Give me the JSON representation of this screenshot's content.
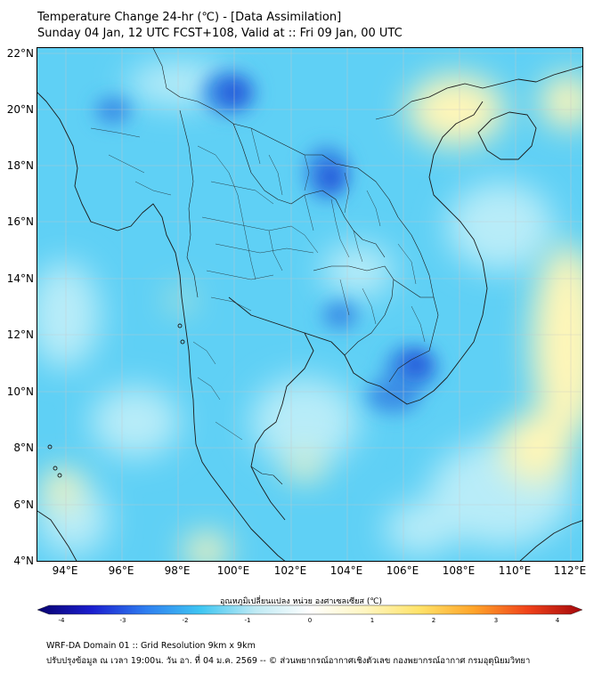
{
  "title_line1": "Temperature Change 24-hr (℃) - [Data Assimilation]",
  "title_line2": "Sunday 04 Jan, 12 UTC FCST+108, Valid at :: Fri 09 Jan, 00 UTC",
  "lat_labels": [
    "22°N",
    "20°N",
    "18°N",
    "16°N",
    "14°N",
    "12°N",
    "10°N",
    "8°N",
    "6°N",
    "4°N"
  ],
  "lon_labels": [
    "94°E",
    "96°E",
    "98°E",
    "100°E",
    "102°E",
    "104°E",
    "106°E",
    "108°E",
    "110°E",
    "112°E"
  ],
  "colorbar": {
    "label": "อุณหภูมิเปลี่ยนแปลง หน่วย องศาเซลเซียส (℃)",
    "ticks": [
      "-4",
      "-3",
      "-2",
      "-1",
      "0",
      "1",
      "2",
      "3",
      "4"
    ],
    "min": -4,
    "max": 4,
    "colors": [
      "#08026e",
      "#1b1ecf",
      "#2f7ff0",
      "#3fc6f2",
      "#bfeaf4",
      "#ffffff",
      "#fff6c2",
      "#ffe36a",
      "#ffa52a",
      "#f0421a",
      "#a3070c"
    ]
  },
  "map_colors": {
    "base": "#5fd0f5",
    "light": "#b8ecf8",
    "dark": "#3a8fe6",
    "darkest": "#2050d8",
    "warm": "#fff6b8",
    "ocean_edge": "#e8f8fb"
  },
  "footer_line1": "WRF-DA Domain 01 :: Grid Resolution 9km x 9km",
  "footer_line2": "ปรับปรุงข้อมูล ณ เวลา 19:00น. วัน อา. ที่ 04 ม.ค. 2569 -- © ส่วนพยากรณ์อากาศเชิงตัวเลข กองพยากรณ์อากาศ กรมอุตุนิยมวิทยา"
}
